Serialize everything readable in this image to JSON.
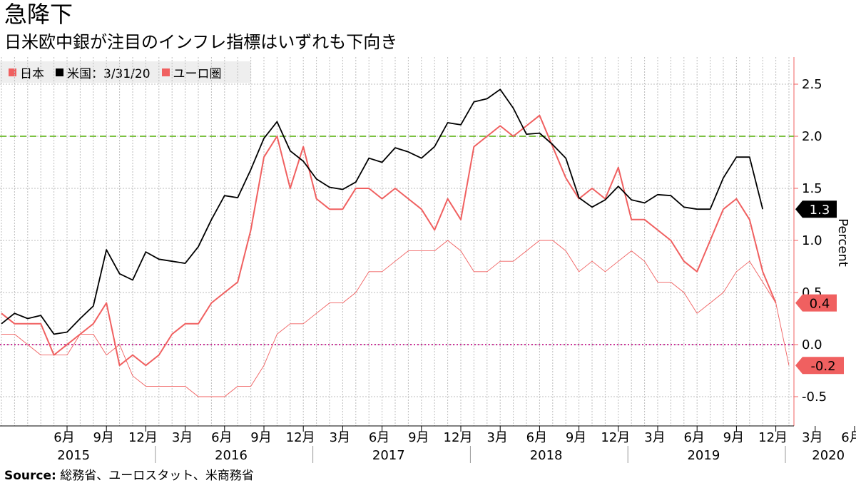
{
  "title": "急降下",
  "subtitle": "日米欧中銀が注目のインフレ指標はいずれも下向き",
  "source": {
    "label": "Source:",
    "text": " 総務省、ユーロスタット、米商務省"
  },
  "chart_data": {
    "type": "line",
    "ylabel": "Percent",
    "ylim": [
      -0.8,
      2.7
    ],
    "yticks": [
      "2.5",
      "2.0",
      "1.5",
      "1.0",
      "0.5",
      "0.0",
      "-0.5"
    ],
    "ytick_values": [
      2.5,
      2.0,
      1.5,
      1.0,
      0.5,
      0.0,
      -0.5
    ],
    "grid": true,
    "legend_position": "top-left",
    "month_labels": [
      "6月",
      "9月",
      "12月",
      "3月",
      "6月",
      "9月",
      "12月",
      "3月",
      "6月",
      "9月",
      "12月",
      "3月",
      "6月",
      "9月",
      "12月",
      "3月",
      "6月",
      "9月",
      "12月",
      "3月",
      "6月",
      "9月",
      "12月",
      "3月"
    ],
    "month_positions": [
      5,
      8,
      11,
      14,
      17,
      20,
      23,
      26,
      29,
      32,
      35,
      38,
      41,
      44,
      47,
      50,
      53,
      56,
      59,
      62,
      65,
      68,
      71,
      74
    ],
    "years": [
      "2015",
      "2016",
      "2017",
      "2018",
      "2019",
      "2020"
    ],
    "year_positions": [
      5.5,
      17.5,
      29.5,
      41.5,
      53.5,
      63.0
    ],
    "reference_lines": [
      {
        "value": 2.0,
        "color": "#7dc242"
      },
      {
        "value": 0.0,
        "color": "#cc3399"
      }
    ],
    "series": [
      {
        "name": "日本",
        "color": "#f06060",
        "last_label": "0.4",
        "values": [
          0.3,
          0.2,
          0.2,
          0.2,
          -0.1,
          0.0,
          0.1,
          0.2,
          0.4,
          -0.2,
          -0.1,
          -0.2,
          -0.1,
          0.1,
          0.2,
          0.2,
          0.4,
          0.5,
          0.6,
          1.1,
          1.8,
          2.0,
          1.5,
          1.9,
          1.4,
          1.3,
          1.3,
          1.5,
          1.5,
          1.4,
          1.5,
          1.4,
          1.3,
          1.1,
          1.4,
          1.2,
          1.9,
          2.0,
          2.1,
          2.0,
          2.1,
          2.2,
          1.9,
          1.6,
          1.4,
          1.5,
          1.4,
          1.7,
          1.2,
          1.2,
          1.1,
          1.0,
          0.8,
          0.7,
          1.0,
          1.3,
          1.4,
          1.2,
          0.7,
          0.4
        ]
      },
      {
        "name": "米国：3/31/20",
        "color": "#000000",
        "last_label": "1.3",
        "values": [
          0.2,
          0.3,
          0.25,
          0.28,
          0.1,
          0.12,
          0.25,
          0.37,
          0.91,
          0.68,
          0.62,
          0.89,
          0.82,
          0.8,
          0.78,
          0.94,
          1.2,
          1.43,
          1.41,
          1.68,
          1.98,
          2.14,
          1.86,
          1.76,
          1.59,
          1.51,
          1.49,
          1.56,
          1.79,
          1.75,
          1.89,
          1.85,
          1.79,
          1.9,
          2.13,
          2.11,
          2.33,
          2.36,
          2.45,
          2.27,
          2.02,
          2.03,
          1.92,
          1.79,
          1.41,
          1.32,
          1.39,
          1.52,
          1.39,
          1.36,
          1.44,
          1.43,
          1.32,
          1.3,
          1.3,
          1.6,
          1.8,
          1.8,
          1.3
        ]
      },
      {
        "name": "ユーロ圏",
        "color": "#f06060",
        "last_label": "-0.2",
        "values": [
          0.1,
          0.1,
          0.0,
          -0.1,
          -0.1,
          -0.1,
          0.1,
          0.1,
          -0.1,
          0.0,
          -0.3,
          -0.4,
          -0.4,
          -0.4,
          -0.4,
          -0.5,
          -0.5,
          -0.5,
          -0.4,
          -0.4,
          -0.2,
          0.1,
          0.2,
          0.2,
          0.3,
          0.4,
          0.4,
          0.5,
          0.7,
          0.7,
          0.8,
          0.9,
          0.9,
          0.9,
          1.0,
          0.9,
          0.7,
          0.7,
          0.8,
          0.8,
          0.9,
          1.0,
          1.0,
          0.9,
          0.7,
          0.8,
          0.7,
          0.8,
          0.9,
          0.8,
          0.6,
          0.6,
          0.5,
          0.3,
          0.4,
          0.5,
          0.7,
          0.8,
          0.6,
          0.4,
          -0.2
        ]
      }
    ]
  }
}
